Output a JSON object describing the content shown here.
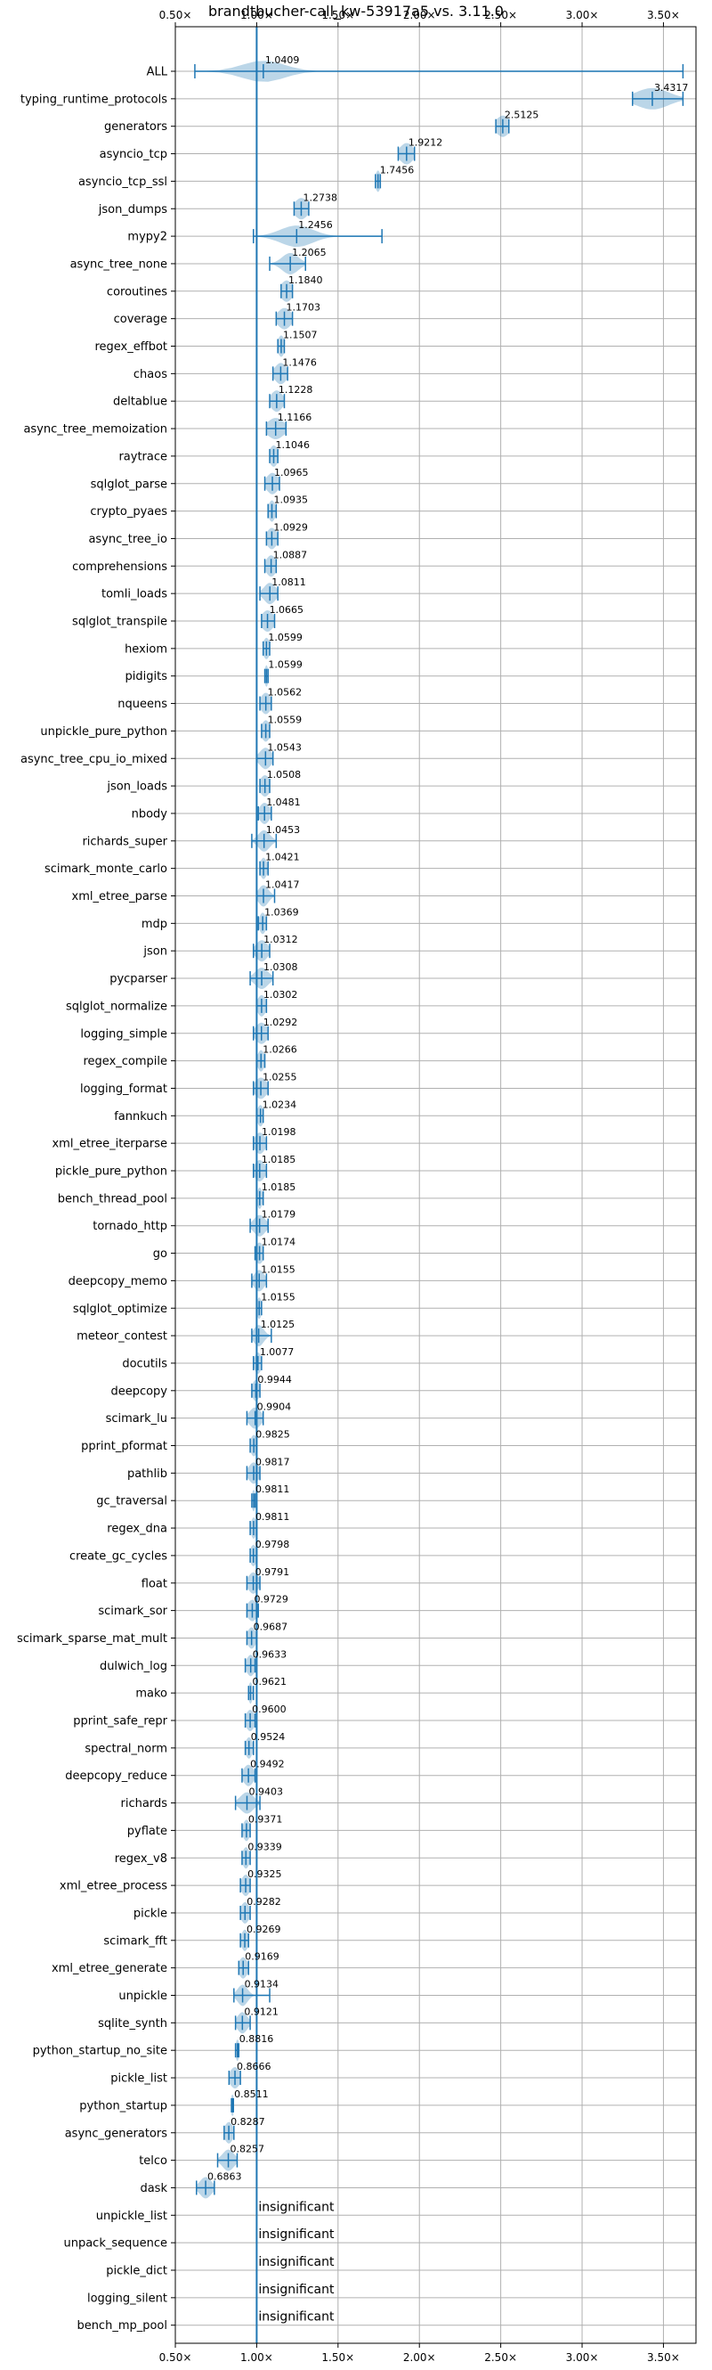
{
  "chart_data": {
    "type": "violin",
    "title": "brandtbucher-call_kw-53917a5 vs. 3.11.0",
    "xlim": [
      0.5,
      3.7
    ],
    "x_ticks": [
      {
        "value": 0.5,
        "label": "0.50×"
      },
      {
        "value": 1.0,
        "label": "1.00×"
      },
      {
        "value": 1.5,
        "label": "1.50×"
      },
      {
        "value": 2.0,
        "label": "2.00×"
      },
      {
        "value": 2.5,
        "label": "2.50×"
      },
      {
        "value": 3.0,
        "label": "3.00×"
      },
      {
        "value": 3.5,
        "label": "3.50×"
      }
    ],
    "baseline": 1.0,
    "grid": true,
    "insignificant_label": "insignificant",
    "benchmarks": [
      {
        "name": "ALL",
        "value": 1.0409,
        "label": "1.0409",
        "min": 0.62,
        "max": 3.62,
        "spread": 0.13
      },
      {
        "name": "typing_runtime_protocols",
        "value": 3.4317,
        "label": "3.4317",
        "min": 3.31,
        "max": 3.62,
        "spread": 0.1
      },
      {
        "name": "generators",
        "value": 2.5125,
        "label": "2.5125",
        "min": 2.47,
        "max": 2.55,
        "spread": 0.04
      },
      {
        "name": "asyncio_tcp",
        "value": 1.9212,
        "label": "1.9212",
        "min": 1.87,
        "max": 1.97,
        "spread": 0.04
      },
      {
        "name": "asyncio_tcp_ssl",
        "value": 1.7456,
        "label": "1.7456",
        "min": 1.73,
        "max": 1.76,
        "spread": 0.015
      },
      {
        "name": "json_dumps",
        "value": 1.2738,
        "label": "1.2738",
        "min": 1.23,
        "max": 1.32,
        "spread": 0.04
      },
      {
        "name": "mypy2",
        "value": 1.2456,
        "label": "1.2456",
        "min": 0.98,
        "max": 1.77,
        "spread": 0.1
      },
      {
        "name": "async_tree_none",
        "value": 1.2065,
        "label": "1.2065",
        "min": 1.08,
        "max": 1.3,
        "spread": 0.05
      },
      {
        "name": "coroutines",
        "value": 1.184,
        "label": "1.1840",
        "min": 1.15,
        "max": 1.22,
        "spread": 0.035
      },
      {
        "name": "coverage",
        "value": 1.1703,
        "label": "1.1703",
        "min": 1.12,
        "max": 1.22,
        "spread": 0.04
      },
      {
        "name": "regex_effbot",
        "value": 1.1507,
        "label": "1.1507",
        "min": 1.13,
        "max": 1.17,
        "spread": 0.02
      },
      {
        "name": "chaos",
        "value": 1.1476,
        "label": "1.1476",
        "min": 1.1,
        "max": 1.19,
        "spread": 0.035
      },
      {
        "name": "deltablue",
        "value": 1.1228,
        "label": "1.1228",
        "min": 1.08,
        "max": 1.17,
        "spread": 0.035
      },
      {
        "name": "async_tree_memoization",
        "value": 1.1166,
        "label": "1.1166",
        "min": 1.06,
        "max": 1.18,
        "spread": 0.05
      },
      {
        "name": "raytrace",
        "value": 1.1046,
        "label": "1.1046",
        "min": 1.08,
        "max": 1.13,
        "spread": 0.025
      },
      {
        "name": "sqlglot_parse",
        "value": 1.0965,
        "label": "1.0965",
        "min": 1.05,
        "max": 1.14,
        "spread": 0.035
      },
      {
        "name": "crypto_pyaes",
        "value": 1.0935,
        "label": "1.0935",
        "min": 1.07,
        "max": 1.12,
        "spread": 0.02
      },
      {
        "name": "async_tree_io",
        "value": 1.0929,
        "label": "1.0929",
        "min": 1.06,
        "max": 1.13,
        "spread": 0.03
      },
      {
        "name": "comprehensions",
        "value": 1.0887,
        "label": "1.0887",
        "min": 1.05,
        "max": 1.12,
        "spread": 0.03
      },
      {
        "name": "tomli_loads",
        "value": 1.0811,
        "label": "1.0811",
        "min": 1.02,
        "max": 1.13,
        "spread": 0.035
      },
      {
        "name": "sqlglot_transpile",
        "value": 1.0665,
        "label": "1.0665",
        "min": 1.03,
        "max": 1.11,
        "spread": 0.035
      },
      {
        "name": "hexiom",
        "value": 1.0599,
        "label": "1.0599",
        "min": 1.04,
        "max": 1.08,
        "spread": 0.02
      },
      {
        "name": "pidigits",
        "value": 1.0599,
        "label": "1.0599",
        "min": 1.05,
        "max": 1.07,
        "spread": 0.008
      },
      {
        "name": "nqueens",
        "value": 1.0562,
        "label": "1.0562",
        "min": 1.02,
        "max": 1.09,
        "spread": 0.03
      },
      {
        "name": "unpickle_pure_python",
        "value": 1.0559,
        "label": "1.0559",
        "min": 1.03,
        "max": 1.08,
        "spread": 0.025
      },
      {
        "name": "async_tree_cpu_io_mixed",
        "value": 1.0543,
        "label": "1.0543",
        "min": 1.0,
        "max": 1.1,
        "spread": 0.035
      },
      {
        "name": "json_loads",
        "value": 1.0508,
        "label": "1.0508",
        "min": 1.02,
        "max": 1.08,
        "spread": 0.03
      },
      {
        "name": "nbody",
        "value": 1.0481,
        "label": "1.0481",
        "min": 1.01,
        "max": 1.09,
        "spread": 0.03
      },
      {
        "name": "richards_super",
        "value": 1.0453,
        "label": "1.0453",
        "min": 0.97,
        "max": 1.12,
        "spread": 0.035
      },
      {
        "name": "scimark_monte_carlo",
        "value": 1.0421,
        "label": "1.0421",
        "min": 1.02,
        "max": 1.07,
        "spread": 0.02
      },
      {
        "name": "xml_etree_parse",
        "value": 1.0417,
        "label": "1.0417",
        "min": 1.0,
        "max": 1.11,
        "spread": 0.03
      },
      {
        "name": "mdp",
        "value": 1.0369,
        "label": "1.0369",
        "min": 1.01,
        "max": 1.06,
        "spread": 0.02
      },
      {
        "name": "json",
        "value": 1.0312,
        "label": "1.0312",
        "min": 0.98,
        "max": 1.08,
        "spread": 0.035
      },
      {
        "name": "pycparser",
        "value": 1.0308,
        "label": "1.0308",
        "min": 0.96,
        "max": 1.1,
        "spread": 0.04
      },
      {
        "name": "sqlglot_normalize",
        "value": 1.0302,
        "label": "1.0302",
        "min": 1.0,
        "max": 1.06,
        "spread": 0.025
      },
      {
        "name": "logging_simple",
        "value": 1.0292,
        "label": "1.0292",
        "min": 0.98,
        "max": 1.07,
        "spread": 0.035
      },
      {
        "name": "regex_compile",
        "value": 1.0266,
        "label": "1.0266",
        "min": 1.0,
        "max": 1.05,
        "spread": 0.02
      },
      {
        "name": "logging_format",
        "value": 1.0255,
        "label": "1.0255",
        "min": 0.98,
        "max": 1.07,
        "spread": 0.035
      },
      {
        "name": "fannkuch",
        "value": 1.0234,
        "label": "1.0234",
        "min": 1.0,
        "max": 1.04,
        "spread": 0.02
      },
      {
        "name": "xml_etree_iterparse",
        "value": 1.0198,
        "label": "1.0198",
        "min": 0.98,
        "max": 1.06,
        "spread": 0.03
      },
      {
        "name": "pickle_pure_python",
        "value": 1.0185,
        "label": "1.0185",
        "min": 0.98,
        "max": 1.06,
        "spread": 0.03
      },
      {
        "name": "bench_thread_pool",
        "value": 1.0185,
        "label": "1.0185",
        "min": 1.0,
        "max": 1.04,
        "spread": 0.015
      },
      {
        "name": "tornado_http",
        "value": 1.0179,
        "label": "1.0179",
        "min": 0.96,
        "max": 1.07,
        "spread": 0.035
      },
      {
        "name": "go",
        "value": 1.0174,
        "label": "1.0174",
        "min": 0.99,
        "max": 1.04,
        "spread": 0.025
      },
      {
        "name": "deepcopy_memo",
        "value": 1.0155,
        "label": "1.0155",
        "min": 0.97,
        "max": 1.06,
        "spread": 0.03
      },
      {
        "name": "sqlglot_optimize",
        "value": 1.0155,
        "label": "1.0155",
        "min": 1.0,
        "max": 1.03,
        "spread": 0.015
      },
      {
        "name": "meteor_contest",
        "value": 1.0125,
        "label": "1.0125",
        "min": 0.97,
        "max": 1.09,
        "spread": 0.03
      },
      {
        "name": "docutils",
        "value": 1.0077,
        "label": "1.0077",
        "min": 0.98,
        "max": 1.03,
        "spread": 0.02
      },
      {
        "name": "deepcopy",
        "value": 0.9944,
        "label": "0.9944",
        "min": 0.97,
        "max": 1.02,
        "spread": 0.02
      },
      {
        "name": "scimark_lu",
        "value": 0.9904,
        "label": "0.9904",
        "min": 0.94,
        "max": 1.04,
        "spread": 0.035
      },
      {
        "name": "pprint_pformat",
        "value": 0.9825,
        "label": "0.9825",
        "min": 0.96,
        "max": 1.0,
        "spread": 0.02
      },
      {
        "name": "pathlib",
        "value": 0.9817,
        "label": "0.9817",
        "min": 0.94,
        "max": 1.02,
        "spread": 0.03
      },
      {
        "name": "gc_traversal",
        "value": 0.9811,
        "label": "0.9811",
        "min": 0.97,
        "max": 0.99,
        "spread": 0.01
      },
      {
        "name": "regex_dna",
        "value": 0.9811,
        "label": "0.9811",
        "min": 0.96,
        "max": 1.0,
        "spread": 0.015
      },
      {
        "name": "create_gc_cycles",
        "value": 0.9798,
        "label": "0.9798",
        "min": 0.96,
        "max": 1.0,
        "spread": 0.02
      },
      {
        "name": "float",
        "value": 0.9791,
        "label": "0.9791",
        "min": 0.94,
        "max": 1.02,
        "spread": 0.03
      },
      {
        "name": "scimark_sor",
        "value": 0.9729,
        "label": "0.9729",
        "min": 0.94,
        "max": 1.01,
        "spread": 0.03
      },
      {
        "name": "scimark_sparse_mat_mult",
        "value": 0.9687,
        "label": "0.9687",
        "min": 0.94,
        "max": 1.0,
        "spread": 0.025
      },
      {
        "name": "dulwich_log",
        "value": 0.9633,
        "label": "0.9633",
        "min": 0.93,
        "max": 0.99,
        "spread": 0.025
      },
      {
        "name": "mako",
        "value": 0.9621,
        "label": "0.9621",
        "min": 0.95,
        "max": 0.98,
        "spread": 0.012
      },
      {
        "name": "pprint_safe_repr",
        "value": 0.96,
        "label": "0.9600",
        "min": 0.93,
        "max": 0.99,
        "spread": 0.025
      },
      {
        "name": "spectral_norm",
        "value": 0.9524,
        "label": "0.9524",
        "min": 0.93,
        "max": 0.98,
        "spread": 0.02
      },
      {
        "name": "deepcopy_reduce",
        "value": 0.9492,
        "label": "0.9492",
        "min": 0.91,
        "max": 0.99,
        "spread": 0.03
      },
      {
        "name": "richards",
        "value": 0.9403,
        "label": "0.9403",
        "min": 0.87,
        "max": 1.02,
        "spread": 0.04
      },
      {
        "name": "pyflate",
        "value": 0.9371,
        "label": "0.9371",
        "min": 0.91,
        "max": 0.96,
        "spread": 0.02
      },
      {
        "name": "regex_v8",
        "value": 0.9339,
        "label": "0.9339",
        "min": 0.91,
        "max": 0.96,
        "spread": 0.02
      },
      {
        "name": "xml_etree_process",
        "value": 0.9325,
        "label": "0.9325",
        "min": 0.9,
        "max": 0.96,
        "spread": 0.025
      },
      {
        "name": "pickle",
        "value": 0.9282,
        "label": "0.9282",
        "min": 0.9,
        "max": 0.96,
        "spread": 0.025
      },
      {
        "name": "scimark_fft",
        "value": 0.9269,
        "label": "0.9269",
        "min": 0.9,
        "max": 0.95,
        "spread": 0.02
      },
      {
        "name": "xml_etree_generate",
        "value": 0.9169,
        "label": "0.9169",
        "min": 0.89,
        "max": 0.95,
        "spread": 0.025
      },
      {
        "name": "unpickle",
        "value": 0.9134,
        "label": "0.9134",
        "min": 0.86,
        "max": 1.08,
        "spread": 0.03
      },
      {
        "name": "sqlite_synth",
        "value": 0.9121,
        "label": "0.9121",
        "min": 0.87,
        "max": 0.96,
        "spread": 0.03
      },
      {
        "name": "python_startup_no_site",
        "value": 0.8816,
        "label": "0.8816",
        "min": 0.87,
        "max": 0.89,
        "spread": 0.008
      },
      {
        "name": "pickle_list",
        "value": 0.8666,
        "label": "0.8666",
        "min": 0.83,
        "max": 0.9,
        "spread": 0.03
      },
      {
        "name": "python_startup",
        "value": 0.8511,
        "label": "0.8511",
        "min": 0.845,
        "max": 0.857,
        "spread": 0.006
      },
      {
        "name": "async_generators",
        "value": 0.8287,
        "label": "0.8287",
        "min": 0.8,
        "max": 0.86,
        "spread": 0.025
      },
      {
        "name": "telco",
        "value": 0.8257,
        "label": "0.8257",
        "min": 0.76,
        "max": 0.88,
        "spread": 0.035
      },
      {
        "name": "dask",
        "value": 0.6863,
        "label": "0.6863",
        "min": 0.63,
        "max": 0.74,
        "spread": 0.035
      },
      {
        "name": "unpickle_list",
        "value": null,
        "label": "insignificant"
      },
      {
        "name": "unpack_sequence",
        "value": null,
        "label": "insignificant"
      },
      {
        "name": "pickle_dict",
        "value": null,
        "label": "insignificant"
      },
      {
        "name": "logging_silent",
        "value": null,
        "label": "insignificant"
      },
      {
        "name": "bench_mp_pool",
        "value": null,
        "label": "insignificant"
      }
    ]
  },
  "colors": {
    "series": "#1f77b4",
    "grid": "#b0b0b0"
  }
}
